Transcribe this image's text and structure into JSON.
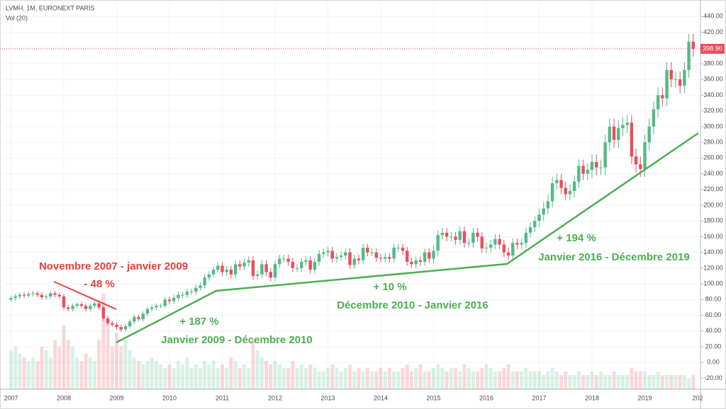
{
  "chart_data": {
    "type": "candlestick",
    "title": "LVMH, 1M, EURONEXT PARIS",
    "subtitle": "Vol (20)",
    "up_color": "#53b987",
    "down_color": "#eb4d5c",
    "grid": true,
    "categories": [
      "2007",
      null,
      null,
      null,
      null,
      null,
      null,
      null,
      null,
      null,
      null,
      null,
      "2008",
      null,
      null,
      null,
      null,
      null,
      null,
      null,
      null,
      null,
      null,
      null,
      "2009",
      null,
      null,
      null,
      null,
      null,
      null,
      null,
      null,
      null,
      null,
      null,
      "2010",
      null,
      null,
      null,
      null,
      null,
      null,
      null,
      null,
      null,
      null,
      null,
      "2011",
      null,
      null,
      null,
      null,
      null,
      null,
      null,
      null,
      null,
      null,
      null,
      "2012",
      null,
      null,
      null,
      null,
      null,
      null,
      null,
      null,
      null,
      null,
      null,
      "2013",
      null,
      null,
      null,
      null,
      null,
      null,
      null,
      null,
      null,
      null,
      null,
      "2014",
      null,
      null,
      null,
      null,
      null,
      null,
      null,
      null,
      null,
      null,
      null,
      "2015",
      null,
      null,
      null,
      null,
      null,
      null,
      null,
      null,
      null,
      null,
      null,
      "2016",
      null,
      null,
      null,
      null,
      null,
      null,
      null,
      null,
      null,
      null,
      null,
      "2017",
      null,
      null,
      null,
      null,
      null,
      null,
      null,
      null,
      null,
      null,
      null,
      "2018",
      null,
      null,
      null,
      null,
      null,
      null,
      null,
      null,
      null,
      null,
      null,
      "2019",
      null,
      null,
      null,
      null,
      null,
      null,
      null,
      null,
      null,
      null,
      null,
      "202"
    ],
    "open": [
      80,
      82,
      84,
      86,
      85,
      87,
      88,
      86,
      83,
      84,
      88,
      86,
      84,
      70,
      68,
      72,
      74,
      72,
      68,
      72,
      75,
      70,
      56,
      50,
      48,
      45,
      42,
      46,
      52,
      58,
      55,
      62,
      68,
      70,
      72,
      72,
      80,
      78,
      82,
      86,
      86,
      90,
      90,
      95,
      98,
      108,
      112,
      118,
      123,
      115,
      118,
      112,
      125,
      122,
      127,
      130,
      110,
      112,
      125,
      115,
      108,
      125,
      132,
      132,
      128,
      120,
      120,
      128,
      130,
      118,
      128,
      138,
      140,
      142,
      132,
      134,
      136,
      140,
      124,
      132,
      130,
      146,
      140,
      140,
      133,
      132,
      134,
      132,
      146,
      146,
      142,
      128,
      125,
      130,
      128,
      140,
      132,
      142,
      162,
      165,
      160,
      160,
      156,
      167,
      152,
      152,
      165,
      160,
      145,
      146,
      150,
      157,
      150,
      140,
      136,
      152,
      150,
      152,
      165,
      172,
      180,
      188,
      196,
      205,
      228,
      232,
      222,
      214,
      218,
      230,
      250,
      240,
      245,
      255,
      248,
      248,
      280,
      300,
      283,
      298,
      302,
      305,
      262,
      252,
      246,
      280,
      300,
      322,
      340,
      336,
      372,
      360,
      360,
      352,
      372,
      408,
      null
    ],
    "high": [
      85,
      87,
      89,
      89,
      90,
      91,
      91,
      89,
      87,
      91,
      91,
      89,
      87,
      73,
      75,
      77,
      77,
      75,
      75,
      78,
      78,
      73,
      59,
      53,
      51,
      48,
      49,
      55,
      61,
      61,
      65,
      71,
      73,
      75,
      75,
      83,
      84,
      86,
      90,
      90,
      94,
      94,
      99,
      102,
      112,
      116,
      122,
      127,
      128,
      123,
      123,
      130,
      130,
      132,
      135,
      135,
      117,
      130,
      130,
      120,
      130,
      137,
      137,
      137,
      133,
      125,
      133,
      135,
      135,
      133,
      143,
      145,
      147,
      147,
      139,
      141,
      145,
      145,
      137,
      137,
      151,
      151,
      145,
      145,
      138,
      139,
      139,
      151,
      151,
      151,
      147,
      133,
      135,
      135,
      145,
      145,
      148,
      168,
      171,
      171,
      166,
      166,
      173,
      173,
      158,
      171,
      171,
      166,
      152,
      156,
      163,
      163,
      156,
      146,
      158,
      158,
      158,
      171,
      178,
      186,
      196,
      204,
      213,
      236,
      240,
      240,
      230,
      226,
      238,
      258,
      258,
      253,
      265,
      265,
      258,
      290,
      310,
      310,
      308,
      312,
      315,
      315,
      272,
      262,
      290,
      310,
      332,
      350,
      350,
      382,
      382,
      370,
      370,
      382,
      418,
      418,
      null
    ],
    "low": [
      77,
      79,
      81,
      82,
      82,
      84,
      83,
      80,
      80,
      81,
      83,
      81,
      67,
      65,
      65,
      69,
      69,
      65,
      65,
      69,
      67,
      53,
      47,
      45,
      42,
      39,
      39,
      43,
      49,
      52,
      52,
      59,
      65,
      67,
      69,
      69,
      74,
      74,
      78,
      82,
      82,
      86,
      86,
      91,
      94,
      104,
      108,
      114,
      110,
      110,
      107,
      107,
      117,
      117,
      122,
      105,
      105,
      107,
      110,
      103,
      103,
      120,
      127,
      123,
      115,
      115,
      115,
      123,
      113,
      113,
      123,
      133,
      135,
      127,
      127,
      129,
      131,
      119,
      119,
      125,
      125,
      135,
      135,
      128,
      127,
      127,
      127,
      127,
      141,
      137,
      123,
      120,
      120,
      123,
      123,
      127,
      126,
      136,
      156,
      154,
      154,
      150,
      150,
      146,
      146,
      146,
      154,
      139,
      139,
      140,
      144,
      144,
      134,
      130,
      130,
      144,
      144,
      146,
      159,
      166,
      172,
      180,
      188,
      197,
      220,
      214,
      206,
      206,
      210,
      222,
      232,
      232,
      235,
      238,
      238,
      238,
      270,
      273,
      273,
      288,
      292,
      252,
      242,
      236,
      236,
      270,
      290,
      312,
      326,
      326,
      350,
      350,
      342,
      342,
      362,
      389,
      null
    ],
    "close": [
      82,
      84,
      86,
      85,
      87,
      88,
      86,
      83,
      84,
      88,
      86,
      84,
      70,
      68,
      72,
      74,
      72,
      68,
      72,
      75,
      70,
      56,
      50,
      48,
      45,
      42,
      46,
      52,
      58,
      55,
      62,
      68,
      70,
      72,
      72,
      80,
      78,
      82,
      86,
      86,
      90,
      90,
      95,
      98,
      108,
      112,
      118,
      123,
      115,
      118,
      112,
      125,
      122,
      127,
      130,
      110,
      112,
      125,
      115,
      108,
      125,
      132,
      132,
      128,
      120,
      120,
      128,
      130,
      118,
      128,
      138,
      140,
      142,
      132,
      134,
      136,
      140,
      124,
      132,
      130,
      146,
      140,
      140,
      133,
      132,
      134,
      132,
      146,
      146,
      142,
      128,
      125,
      130,
      128,
      140,
      132,
      142,
      162,
      165,
      160,
      160,
      156,
      167,
      152,
      152,
      165,
      160,
      145,
      146,
      150,
      157,
      150,
      140,
      136,
      152,
      150,
      152,
      165,
      172,
      180,
      188,
      196,
      205,
      228,
      232,
      222,
      214,
      218,
      230,
      250,
      240,
      245,
      255,
      248,
      248,
      280,
      300,
      283,
      298,
      302,
      305,
      262,
      252,
      246,
      280,
      300,
      322,
      340,
      336,
      372,
      360,
      360,
      352,
      372,
      408,
      398.9,
      null
    ],
    "volume": [
      55,
      60,
      50,
      45,
      40,
      45,
      40,
      60,
      55,
      45,
      70,
      60,
      90,
      70,
      60,
      45,
      40,
      50,
      45,
      40,
      70,
      135,
      100,
      60,
      80,
      60,
      70,
      55,
      45,
      40,
      35,
      40,
      45,
      40,
      35,
      30,
      35,
      30,
      40,
      35,
      45,
      30,
      35,
      30,
      40,
      35,
      40,
      30,
      35,
      30,
      45,
      40,
      30,
      35,
      30,
      70,
      55,
      45,
      40,
      35,
      40,
      35,
      30,
      30,
      40,
      30,
      35,
      30,
      35,
      30,
      25,
      25,
      30,
      35,
      30,
      25,
      30,
      35,
      25,
      30,
      25,
      30,
      25,
      25,
      30,
      25,
      30,
      25,
      25,
      30,
      35,
      25,
      30,
      35,
      25,
      25,
      30,
      35,
      30,
      25,
      30,
      30,
      25,
      35,
      30,
      25,
      25,
      30,
      35,
      30,
      25,
      25,
      30,
      35,
      25,
      25,
      25,
      30,
      25,
      25,
      25,
      20,
      25,
      30,
      25,
      20,
      25,
      20,
      20,
      25,
      20,
      20,
      25,
      20,
      25,
      20,
      20,
      25,
      20,
      20,
      20,
      30,
      25,
      25,
      25,
      20,
      20,
      25,
      20,
      20,
      20,
      20,
      20,
      20,
      15,
      20,
      null
    ],
    "last_price": {
      "value": 398.9,
      "label": "398.90"
    },
    "ylim": [
      -34,
      461
    ],
    "yticks": [
      {
        "value": -20,
        "label": "-20.00"
      },
      {
        "value": 0,
        "label": "0.00"
      },
      {
        "value": 20,
        "label": "20.00"
      },
      {
        "value": 40,
        "label": "40.00"
      },
      {
        "value": 60,
        "label": "60.00"
      },
      {
        "value": 80,
        "label": "80.00"
      },
      {
        "value": 100,
        "label": "100.00"
      },
      {
        "value": 120,
        "label": "120.00"
      },
      {
        "value": 140,
        "label": "140.00"
      },
      {
        "value": 160,
        "label": "160.00"
      },
      {
        "value": 180,
        "label": "180.00"
      },
      {
        "value": 200,
        "label": "200.00"
      },
      {
        "value": 220,
        "label": "220.00"
      },
      {
        "value": 240,
        "label": "240.00"
      },
      {
        "value": 260,
        "label": "260.00"
      },
      {
        "value": 280,
        "label": "280.00"
      },
      {
        "value": 300,
        "label": "300.00"
      },
      {
        "value": 320,
        "label": "320.00"
      },
      {
        "value": 340,
        "label": "340.00"
      },
      {
        "value": 360,
        "label": "360.00"
      },
      {
        "value": 380,
        "label": "380.00"
      },
      {
        "value": 400,
        "label": "400.00"
      },
      {
        "value": 420,
        "label": "420.00"
      },
      {
        "value": 440,
        "label": "440.00"
      }
    ],
    "annotations": [
      {
        "text": "Novembre 2007 - janvier 2009",
        "color": "#f23b3b"
      },
      {
        "text": "- 48 %",
        "color": "#f23b3b"
      },
      {
        "text": "+ 187 %",
        "color": "#4caf50"
      },
      {
        "text": "Janvier 2009 - Décembre 2010",
        "color": "#4caf50"
      },
      {
        "text": "+ 10 %",
        "color": "#4caf50"
      },
      {
        "text": "Décembre 2010 - Janvier 2016",
        "color": "#4caf50"
      },
      {
        "text": "+ 194 %",
        "color": "#4caf50"
      },
      {
        "text": "Janvier 2016 - Décembre 2019",
        "color": "#4caf50"
      }
    ]
  }
}
